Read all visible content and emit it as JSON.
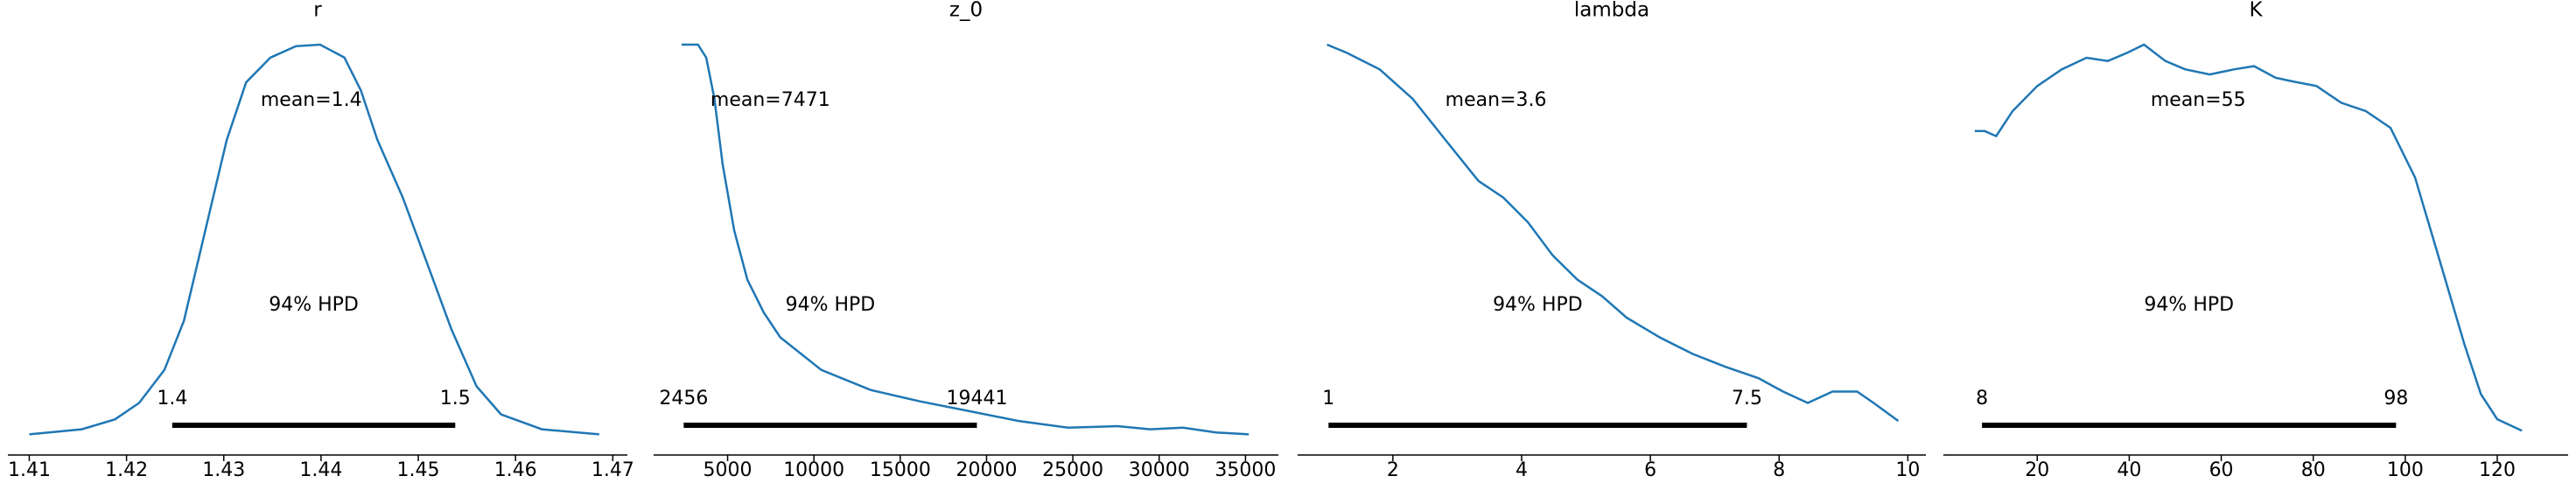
{
  "chart_data": [
    {
      "type": "density",
      "title": "r",
      "color": "#1f77b4",
      "x": [
        1.41,
        1.4154,
        1.4188,
        1.4213,
        1.4239,
        1.4259,
        1.4281,
        1.4303,
        1.4323,
        1.4348,
        1.4374,
        1.4399,
        1.4424,
        1.4441,
        1.4458,
        1.4484,
        1.4509,
        1.4534,
        1.456,
        1.4585,
        1.4627,
        1.4686
      ],
      "values": [
        0.8,
        2.1,
        4.6,
        8.8,
        17.2,
        29.7,
        52.7,
        75.7,
        90.4,
        96.7,
        99.6,
        100,
        96.7,
        88.3,
        75.7,
        61.1,
        44.4,
        27.6,
        13,
        5.9,
        2.1,
        0.8
      ],
      "mean": {
        "value": 1.439,
        "label": "mean=1.4"
      },
      "hpd": {
        "label": "94% HPD",
        "values": [
          1.4247,
          1.4538
        ],
        "value_labels": [
          "1.4",
          "1.5"
        ]
      },
      "xlim": [
        1.4078,
        1.4715
      ],
      "xticks": [
        1.41,
        1.42,
        1.43,
        1.44,
        1.45,
        1.46,
        1.47
      ]
    },
    {
      "type": "density",
      "title": "z_0",
      "color": "#1f77b4",
      "x": [
        2333,
        3286,
        3762,
        4238,
        4714,
        5381,
        6143,
        7095,
        8048,
        10429,
        13286,
        16143,
        19000,
        21857,
        24714,
        27571,
        29476,
        31381,
        33286,
        35190
      ],
      "values": [
        100,
        100,
        96.7,
        86.2,
        69.5,
        52.7,
        40.2,
        31.8,
        25.5,
        17.2,
        12.1,
        9.2,
        6.7,
        4.2,
        2.5,
        2.9,
        2.1,
        2.5,
        1.3,
        0.8
      ],
      "mean": {
        "value": 7471,
        "label": "mean=7471"
      },
      "hpd": {
        "label": "94% HPD",
        "values": [
          2456,
          19441
        ]
      },
      "xlim": [
        714,
        36905
      ],
      "xticks": [
        5000,
        10000,
        15000,
        20000,
        25000,
        30000,
        35000
      ]
    },
    {
      "type": "density",
      "title": "lambda",
      "color": "#1f77b4",
      "x": [
        0.977,
        1.284,
        1.795,
        2.307,
        2.818,
        3.33,
        3.714,
        4.097,
        4.481,
        4.864,
        5.248,
        5.632,
        6.143,
        6.655,
        7.166,
        7.678,
        8.061,
        8.445,
        8.829,
        9.212,
        9.468,
        9.852
      ],
      "values": [
        100,
        97.9,
        93.7,
        86.2,
        75.7,
        65.3,
        61.1,
        54.8,
        46.4,
        40.2,
        36,
        30.5,
        25.5,
        21.3,
        18,
        15.1,
        11.7,
        8.8,
        11.7,
        11.7,
        8.8,
        4.2
      ],
      "mean": {
        "value": 3.6,
        "label": "mean=3.6"
      },
      "hpd": {
        "label": "94% HPD",
        "values": [
          1,
          7.5
        ]
      },
      "xlim": [
        0.52,
        10.28
      ],
      "xticks": [
        2,
        4,
        6,
        8,
        10
      ]
    },
    {
      "type": "density",
      "title": "K",
      "color": "#1f77b4",
      "x": [
        6.43,
        8.57,
        11.07,
        14.64,
        20,
        25.36,
        30.71,
        35.36,
        39.64,
        43.21,
        47.86,
        52.14,
        57.5,
        62.86,
        67.14,
        71.79,
        75.36,
        80.71,
        86.07,
        91.43,
        96.79,
        102.14,
        107.5,
        112.86,
        116.43,
        120,
        125.36
      ],
      "values": [
        77,
        77,
        75.7,
        82,
        88.3,
        92.5,
        95.4,
        94.6,
        96.7,
        98.7,
        94.6,
        92.5,
        91.2,
        92.5,
        93.3,
        90.4,
        89.5,
        88.3,
        84.1,
        82,
        77.8,
        65.3,
        44.4,
        23.4,
        10.9,
        4.6,
        1.7
      ],
      "mean": {
        "value": 55,
        "label": "mean=55"
      },
      "hpd": {
        "label": "94% HPD",
        "values": [
          8,
          98
        ]
      },
      "xlim": [
        -0.4,
        135.4
      ],
      "xticks": [
        20,
        40,
        60,
        80,
        100,
        120
      ]
    }
  ]
}
